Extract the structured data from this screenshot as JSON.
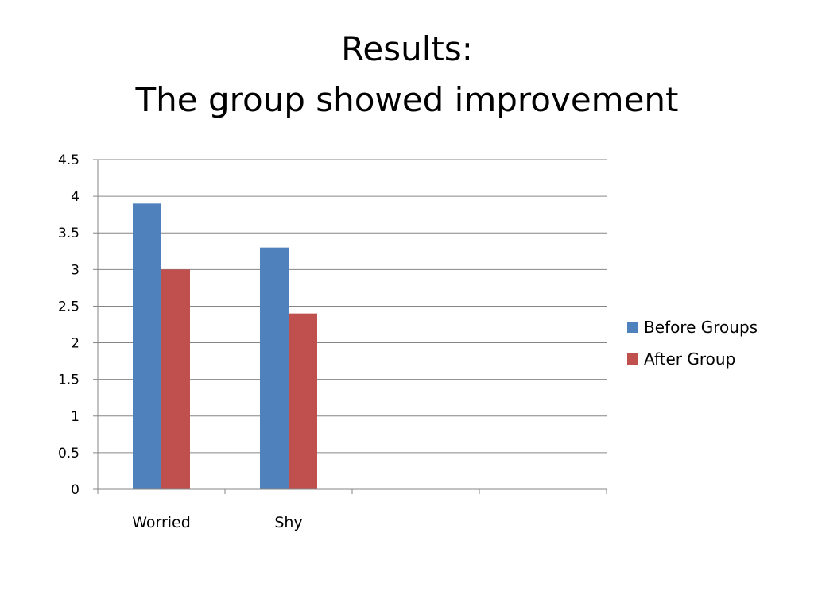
{
  "slide": {
    "title_line1": "Results:",
    "title_line2": "The group showed improvement"
  },
  "chart_data": {
    "type": "bar",
    "title": "",
    "xlabel": "",
    "ylabel": "",
    "categories": [
      "Worried",
      "Shy",
      "",
      ""
    ],
    "series": [
      {
        "name": "Before Groups",
        "color": "#4f81bd",
        "values": [
          3.9,
          3.3,
          null,
          null
        ]
      },
      {
        "name": "After Group",
        "color": "#c0504d",
        "values": [
          3.0,
          2.4,
          null,
          null
        ]
      }
    ],
    "ylim": [
      0,
      4.5
    ],
    "yticks": [
      "0",
      "0.5",
      "1",
      "1.5",
      "2",
      "2.5",
      "3",
      "3.5",
      "4",
      "4.5"
    ],
    "grid": true,
    "legend_position": "right"
  }
}
